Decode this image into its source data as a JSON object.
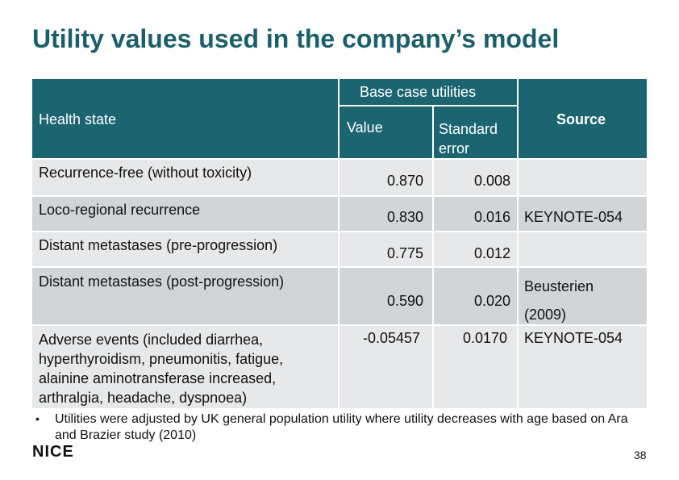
{
  "title": "Utility values used in the company’s model",
  "table": {
    "header": {
      "health_state": "Health state",
      "base_case": "Base case utilities",
      "value": "Value",
      "standard_error": "Standard error",
      "source": "Source"
    },
    "rows": [
      {
        "state": "Recurrence-free (without toxicity)",
        "value": "0.870",
        "se": "0.008"
      },
      {
        "state": "Loco-regional recurrence",
        "value": "0.830",
        "se": "0.016"
      },
      {
        "state": "Distant metastases (pre-progression)",
        "value": "0.775",
        "se": "0.012"
      },
      {
        "state": "Distant metastases (post-progression)",
        "value": "0.590",
        "se": "0.020"
      },
      {
        "state": "Adverse events (included diarrhea, hyperthyroidism, pneumonitis, fatigue, alainine aminotransferase increased, arthralgia, headache, dyspnoea)",
        "value": "-0.05457",
        "se": "0.0170"
      }
    ],
    "sources": {
      "keynote_1": "KEYNOTE-054",
      "beusterien": "Beusterien",
      "beusterien_year": "(2009)",
      "keynote_2": "KEYNOTE-054"
    }
  },
  "footnote": "Utilities were adjusted by UK general population utility where utility decreases with age based on Ara and Brazier study (2010)",
  "bullet": "•",
  "logo": "NICE",
  "page_number": "38"
}
